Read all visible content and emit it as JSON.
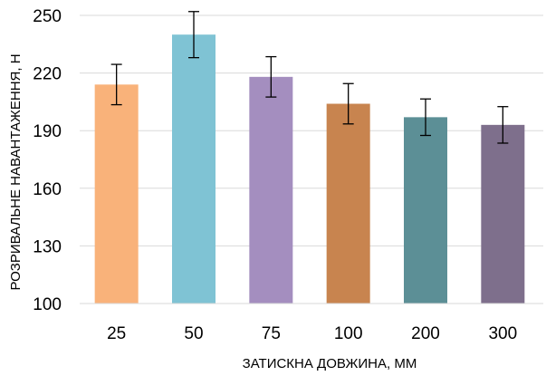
{
  "chart_data": {
    "type": "bar",
    "title": "",
    "xlabel": "ЗАТИСКНА ДОВЖИНА, ММ",
    "ylabel": "РОЗРИВАЛЬНЕ НАВАНТАЖЕННЯ, Н",
    "categories": [
      "25",
      "50",
      "75",
      "100",
      "200",
      "300"
    ],
    "values": [
      214,
      240,
      218,
      204,
      197,
      193
    ],
    "error": [
      10.5,
      12,
      10.5,
      10.5,
      9.5,
      9.5
    ],
    "colors": [
      "#F9B27A",
      "#7FC3D4",
      "#A48EBF",
      "#C8844F",
      "#5C8F96",
      "#7E6F8C"
    ],
    "ylim": [
      100,
      250
    ],
    "yticks": [
      100,
      130,
      160,
      190,
      220,
      250
    ],
    "grid": true,
    "legend": "none"
  }
}
